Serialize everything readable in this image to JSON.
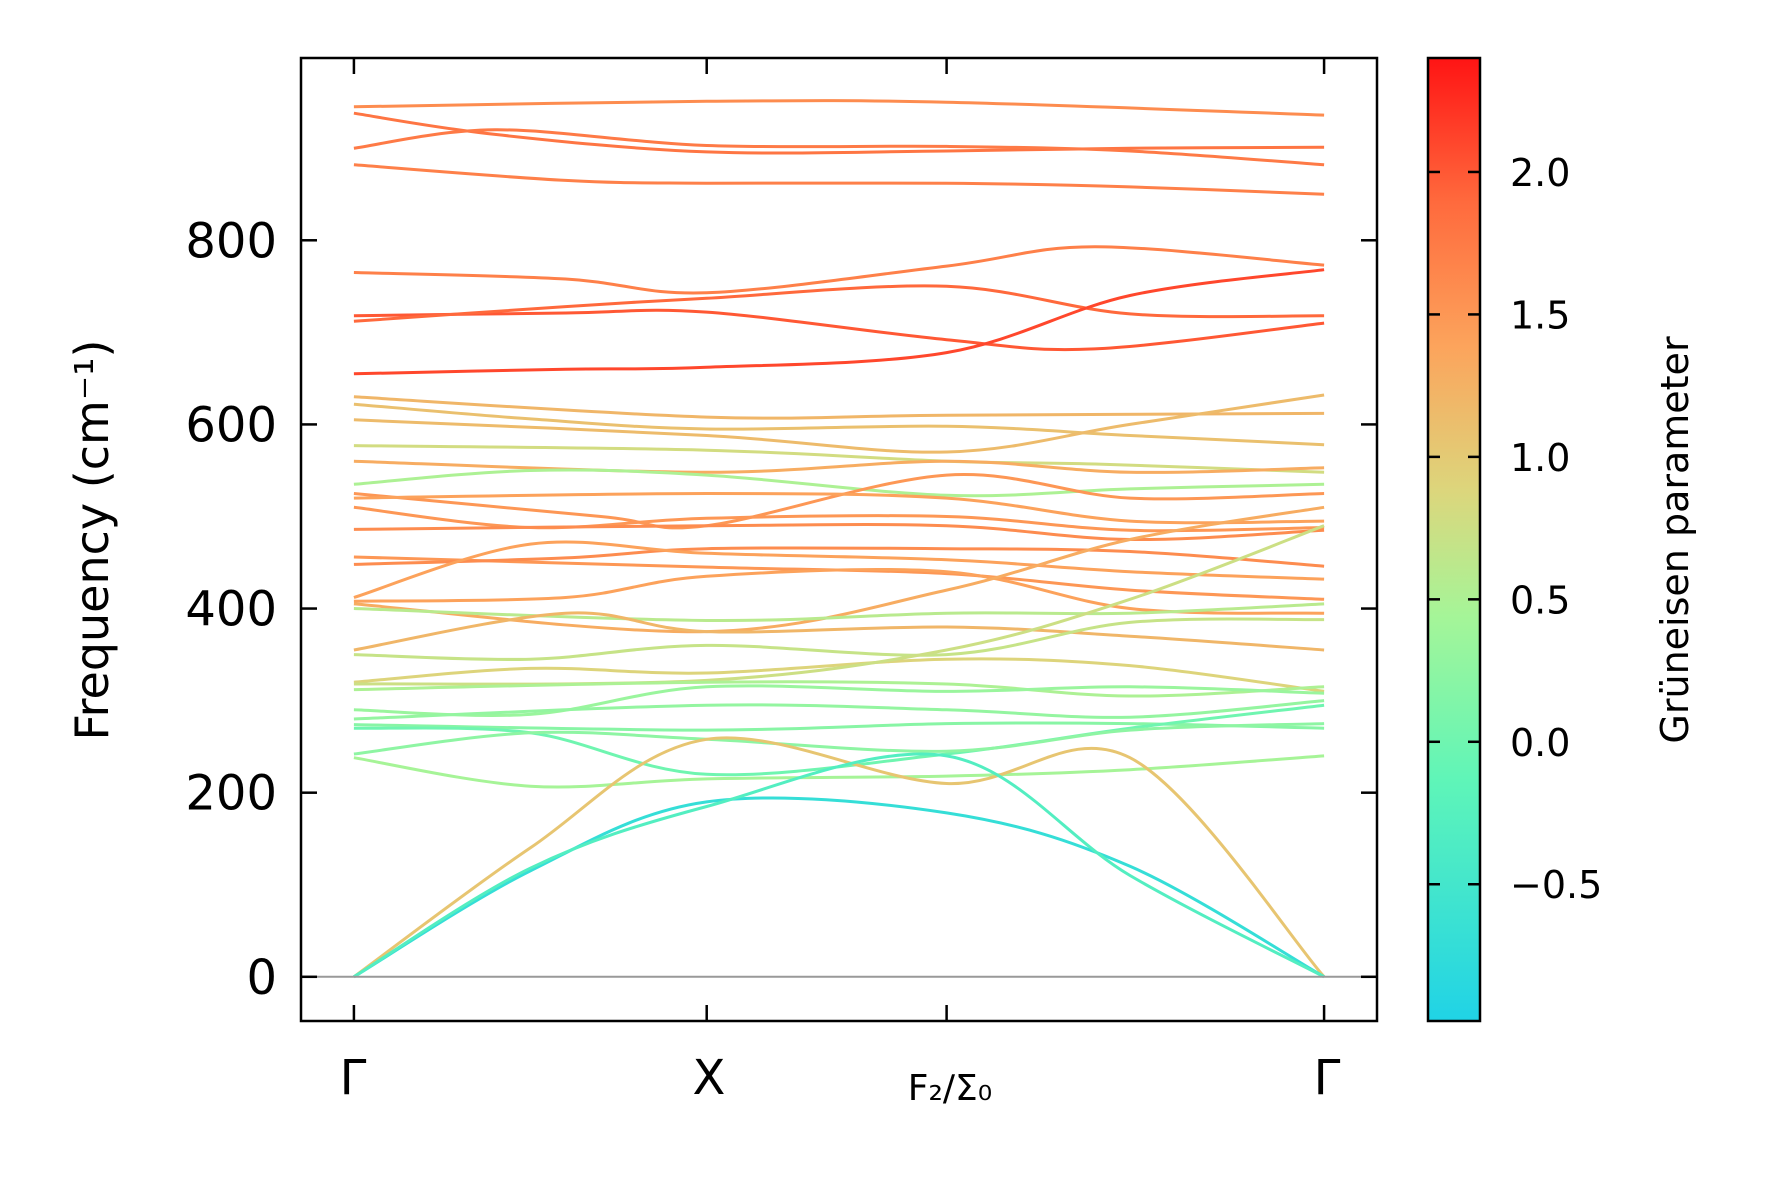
{
  "chart_data": {
    "type": "line",
    "title": "",
    "xlabel": "",
    "ylabel": "Frequency (cm⁻¹)",
    "x_ticks": [
      "Γ",
      "X",
      "F₂/Σ₀",
      "Γ"
    ],
    "x_tick_positions": [
      0,
      1,
      1.68,
      2.75
    ],
    "xlim": [
      -0.15,
      2.9
    ],
    "ylim": [
      -48,
      998
    ],
    "y_ticks": [
      0,
      200,
      400,
      600,
      800
    ],
    "grid": false,
    "legend": "none",
    "colorbar": {
      "label": "Grüneisen parameter",
      "range": [
        -0.98,
        2.4
      ],
      "ticks": [
        -0.5,
        0.0,
        0.5,
        1.0,
        1.5,
        2.0
      ],
      "tick_labels": [
        "−0.5",
        "0.0",
        "0.5",
        "1.0",
        "1.5",
        "2.0"
      ],
      "colormap": "rainbow (cyan → green → yellow → orange → red)"
    },
    "reference_line": {
      "y": 0,
      "color": "#999999"
    },
    "series": [
      {
        "points": [
          [
            0,
            945
          ],
          [
            1,
            951
          ],
          [
            1.68,
            950
          ],
          [
            2.75,
            936
          ]
        ],
        "gamma": 1.6
      },
      {
        "points": [
          [
            0,
            938
          ],
          [
            0.4,
            915
          ],
          [
            1,
            896
          ],
          [
            1.68,
            897
          ],
          [
            2.2,
            900
          ],
          [
            2.75,
            901
          ]
        ],
        "gamma": 1.8
      },
      {
        "points": [
          [
            0,
            900
          ],
          [
            0.4,
            920
          ],
          [
            1,
            903
          ],
          [
            1.68,
            902
          ],
          [
            2.2,
            897
          ],
          [
            2.75,
            882
          ]
        ],
        "gamma": 1.75
      },
      {
        "points": [
          [
            0,
            882
          ],
          [
            0.6,
            865
          ],
          [
            1,
            862
          ],
          [
            1.68,
            862
          ],
          [
            2.2,
            858
          ],
          [
            2.75,
            850
          ]
        ],
        "gamma": 1.7
      },
      {
        "points": [
          [
            0,
            765
          ],
          [
            0.6,
            758
          ],
          [
            1,
            743
          ],
          [
            1.68,
            772
          ],
          [
            2.1,
            793
          ],
          [
            2.75,
            773
          ]
        ],
        "gamma": 1.7
      },
      {
        "points": [
          [
            0,
            718
          ],
          [
            0.6,
            721
          ],
          [
            1,
            722
          ],
          [
            1.68,
            692
          ],
          [
            2.1,
            682
          ],
          [
            2.75,
            710
          ]
        ],
        "gamma": 2.0
      },
      {
        "points": [
          [
            0,
            712
          ],
          [
            0.6,
            728
          ],
          [
            1,
            737
          ],
          [
            1.68,
            750
          ],
          [
            2.2,
            720
          ],
          [
            2.75,
            718
          ]
        ],
        "gamma": 1.9
      },
      {
        "points": [
          [
            0,
            655
          ],
          [
            0.6,
            660
          ],
          [
            1,
            662
          ],
          [
            1.68,
            678
          ],
          [
            2.2,
            740
          ],
          [
            2.75,
            768
          ]
        ],
        "gamma": 2.1
      },
      {
        "points": [
          [
            0,
            630
          ],
          [
            1,
            608
          ],
          [
            1.68,
            610
          ],
          [
            2.75,
            612
          ]
        ],
        "gamma": 1.2
      },
      {
        "points": [
          [
            0,
            622
          ],
          [
            0.5,
            606
          ],
          [
            1,
            595
          ],
          [
            1.68,
            598
          ],
          [
            2.2,
            588
          ],
          [
            2.75,
            578
          ]
        ],
        "gamma": 1.1
      },
      {
        "points": [
          [
            0,
            605
          ],
          [
            1,
            588
          ],
          [
            1.68,
            570
          ],
          [
            2.2,
            600
          ],
          [
            2.75,
            632
          ]
        ],
        "gamma": 1.15
      },
      {
        "points": [
          [
            0,
            577
          ],
          [
            1,
            572
          ],
          [
            1.68,
            560
          ],
          [
            2.1,
            557
          ],
          [
            2.75,
            548
          ]
        ],
        "gamma": 0.8
      },
      {
        "points": [
          [
            0,
            560
          ],
          [
            1,
            548
          ],
          [
            1.68,
            560
          ],
          [
            2.2,
            548
          ],
          [
            2.75,
            553
          ]
        ],
        "gamma": 1.3
      },
      {
        "points": [
          [
            0,
            535
          ],
          [
            0.5,
            550
          ],
          [
            1,
            545
          ],
          [
            1.68,
            523
          ],
          [
            2.2,
            530
          ],
          [
            2.75,
            535
          ]
        ],
        "gamma": 0.5
      },
      {
        "points": [
          [
            0,
            525
          ],
          [
            0.7,
            500
          ],
          [
            1,
            490
          ],
          [
            1.68,
            545
          ],
          [
            2.2,
            520
          ],
          [
            2.75,
            525
          ]
        ],
        "gamma": 1.5
      },
      {
        "points": [
          [
            0,
            520
          ],
          [
            1,
            525
          ],
          [
            1.68,
            520
          ],
          [
            2.2,
            495
          ],
          [
            2.75,
            495
          ]
        ],
        "gamma": 1.4
      },
      {
        "points": [
          [
            0,
            510
          ],
          [
            0.5,
            488
          ],
          [
            1,
            498
          ],
          [
            1.68,
            500
          ],
          [
            2.2,
            485
          ],
          [
            2.75,
            488
          ]
        ],
        "gamma": 1.5
      },
      {
        "points": [
          [
            0,
            486
          ],
          [
            1,
            490
          ],
          [
            1.68,
            490
          ],
          [
            2.2,
            475
          ],
          [
            2.75,
            485
          ]
        ],
        "gamma": 1.6
      },
      {
        "points": [
          [
            0,
            456
          ],
          [
            1,
            445
          ],
          [
            1.68,
            438
          ],
          [
            2.2,
            420
          ],
          [
            2.75,
            410
          ]
        ],
        "gamma": 1.5
      },
      {
        "points": [
          [
            0,
            448
          ],
          [
            0.6,
            455
          ],
          [
            1,
            465
          ],
          [
            1.68,
            465
          ],
          [
            2.2,
            462
          ],
          [
            2.75,
            446
          ]
        ],
        "gamma": 1.6
      },
      {
        "points": [
          [
            0,
            412
          ],
          [
            0.5,
            470
          ],
          [
            1,
            460
          ],
          [
            1.68,
            453
          ],
          [
            2.2,
            440
          ],
          [
            2.75,
            432
          ]
        ],
        "gamma": 1.4
      },
      {
        "points": [
          [
            0,
            408
          ],
          [
            0.6,
            412
          ],
          [
            1,
            435
          ],
          [
            1.68,
            440
          ],
          [
            2.2,
            400
          ],
          [
            2.75,
            395
          ]
        ],
        "gamma": 1.4
      },
      {
        "points": [
          [
            0,
            405
          ],
          [
            1,
            375
          ],
          [
            1.68,
            420
          ],
          [
            2.2,
            475
          ],
          [
            2.75,
            510
          ]
        ],
        "gamma": 1.3
      },
      {
        "points": [
          [
            0,
            400
          ],
          [
            1,
            387
          ],
          [
            1.68,
            395
          ],
          [
            2.2,
            395
          ],
          [
            2.75,
            405
          ]
        ],
        "gamma": 0.6
      },
      {
        "points": [
          [
            0,
            355
          ],
          [
            0.6,
            395
          ],
          [
            1,
            375
          ],
          [
            1.68,
            380
          ],
          [
            2.2,
            370
          ],
          [
            2.75,
            355
          ]
        ],
        "gamma": 1.2
      },
      {
        "points": [
          [
            0,
            350
          ],
          [
            0.5,
            345
          ],
          [
            1,
            360
          ],
          [
            1.68,
            350
          ],
          [
            2.2,
            385
          ],
          [
            2.75,
            388
          ]
        ],
        "gamma": 0.7
      },
      {
        "points": [
          [
            0,
            320
          ],
          [
            0.5,
            335
          ],
          [
            1,
            330
          ],
          [
            1.68,
            345
          ],
          [
            2.2,
            338
          ],
          [
            2.75,
            310
          ]
        ],
        "gamma": 0.9
      },
      {
        "points": [
          [
            0,
            318
          ],
          [
            1,
            322
          ],
          [
            1.68,
            355
          ],
          [
            2.2,
            410
          ],
          [
            2.75,
            490
          ]
        ],
        "gamma": 0.75
      },
      {
        "points": [
          [
            0,
            312
          ],
          [
            1,
            320
          ],
          [
            1.68,
            318
          ],
          [
            2.2,
            305
          ],
          [
            2.75,
            315
          ]
        ],
        "gamma": 0.5
      },
      {
        "points": [
          [
            0,
            290
          ],
          [
            0.5,
            285
          ],
          [
            1,
            315
          ],
          [
            1.68,
            310
          ],
          [
            2.2,
            315
          ],
          [
            2.75,
            308
          ]
        ],
        "gamma": 0.35
      },
      {
        "points": [
          [
            0,
            280
          ],
          [
            1,
            295
          ],
          [
            1.68,
            290
          ],
          [
            2.2,
            282
          ],
          [
            2.75,
            300
          ]
        ],
        "gamma": 0.3
      },
      {
        "points": [
          [
            0,
            274
          ],
          [
            1,
            268
          ],
          [
            1.68,
            275
          ],
          [
            2.2,
            275
          ],
          [
            2.75,
            270
          ]
        ],
        "gamma": 0.2
      },
      {
        "points": [
          [
            0,
            270
          ],
          [
            0.5,
            265
          ],
          [
            1,
            220
          ],
          [
            1.68,
            242
          ],
          [
            2.2,
            270
          ],
          [
            2.75,
            295
          ]
        ],
        "gamma": 0.0
      },
      {
        "points": [
          [
            0,
            242
          ],
          [
            0.5,
            265
          ],
          [
            1,
            258
          ],
          [
            1.68,
            245
          ],
          [
            2.2,
            268
          ],
          [
            2.75,
            275
          ]
        ],
        "gamma": 0.25
      },
      {
        "points": [
          [
            0,
            238
          ],
          [
            0.5,
            207
          ],
          [
            1,
            215
          ],
          [
            1.68,
            218
          ],
          [
            2.2,
            225
          ],
          [
            2.75,
            240
          ]
        ],
        "gamma": 0.45
      },
      {
        "points": [
          [
            0,
            0
          ],
          [
            0.5,
            140
          ],
          [
            1,
            258
          ],
          [
            1.68,
            210
          ],
          [
            2.2,
            238
          ],
          [
            2.75,
            0
          ]
        ],
        "gamma": 1.05
      },
      {
        "points": [
          [
            0,
            0
          ],
          [
            0.5,
            115
          ],
          [
            1,
            190
          ],
          [
            1.68,
            178
          ],
          [
            2.2,
            120
          ],
          [
            2.75,
            0
          ]
        ],
        "gamma": -0.7
      },
      {
        "points": [
          [
            0,
            0
          ],
          [
            0.5,
            118
          ],
          [
            1,
            185
          ],
          [
            1.68,
            240
          ],
          [
            2.2,
            110
          ],
          [
            2.75,
            0
          ]
        ],
        "gamma": -0.3
      }
    ]
  }
}
